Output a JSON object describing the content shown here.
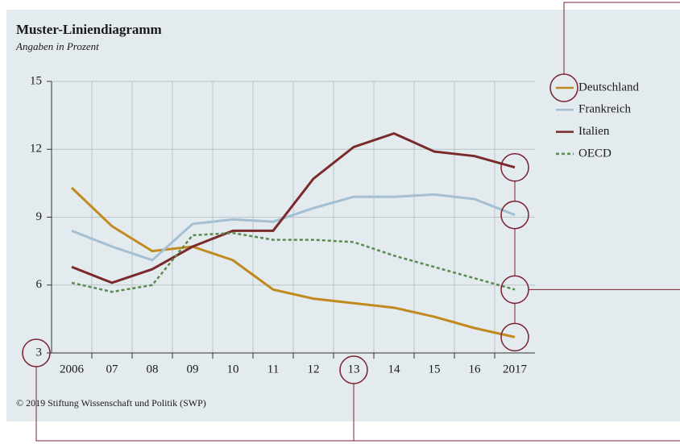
{
  "chart_data": {
    "type": "line",
    "title": "Muster-Liniendiagramm",
    "subtitle": "Angaben in Prozent",
    "footer": "© 2019 Stiftung Wissenschaft und Politik (SWP)",
    "categories": [
      "2006",
      "07",
      "08",
      "09",
      "10",
      "11",
      "12",
      "13",
      "14",
      "15",
      "16",
      "2017"
    ],
    "series": [
      {
        "name": "Deutschland",
        "color": "#c08a1e",
        "values": [
          10.3,
          8.6,
          7.5,
          7.7,
          7.1,
          5.8,
          5.4,
          5.2,
          5.0,
          4.6,
          4.1,
          3.7
        ]
      },
      {
        "name": "Frankreich",
        "color": "#a3bfd1",
        "values": [
          8.4,
          7.7,
          7.1,
          8.7,
          8.9,
          8.8,
          9.4,
          9.9,
          9.9,
          10.0,
          9.8,
          9.1
        ]
      },
      {
        "name": "Italien",
        "color": "#7a2a2a",
        "values": [
          6.8,
          6.1,
          6.7,
          7.7,
          8.4,
          8.4,
          10.7,
          12.1,
          12.7,
          11.9,
          11.7,
          11.2
        ]
      },
      {
        "name": "OECD",
        "color": "#5a8a50",
        "style": "dashed",
        "values": [
          6.1,
          5.7,
          6.0,
          8.2,
          8.3,
          8.0,
          8.0,
          7.9,
          7.3,
          6.8,
          6.3,
          5.8
        ]
      }
    ],
    "ylim": [
      3,
      15
    ],
    "yticks": [
      3,
      6,
      9,
      12,
      15
    ],
    "grid": true,
    "legend": "right"
  }
}
